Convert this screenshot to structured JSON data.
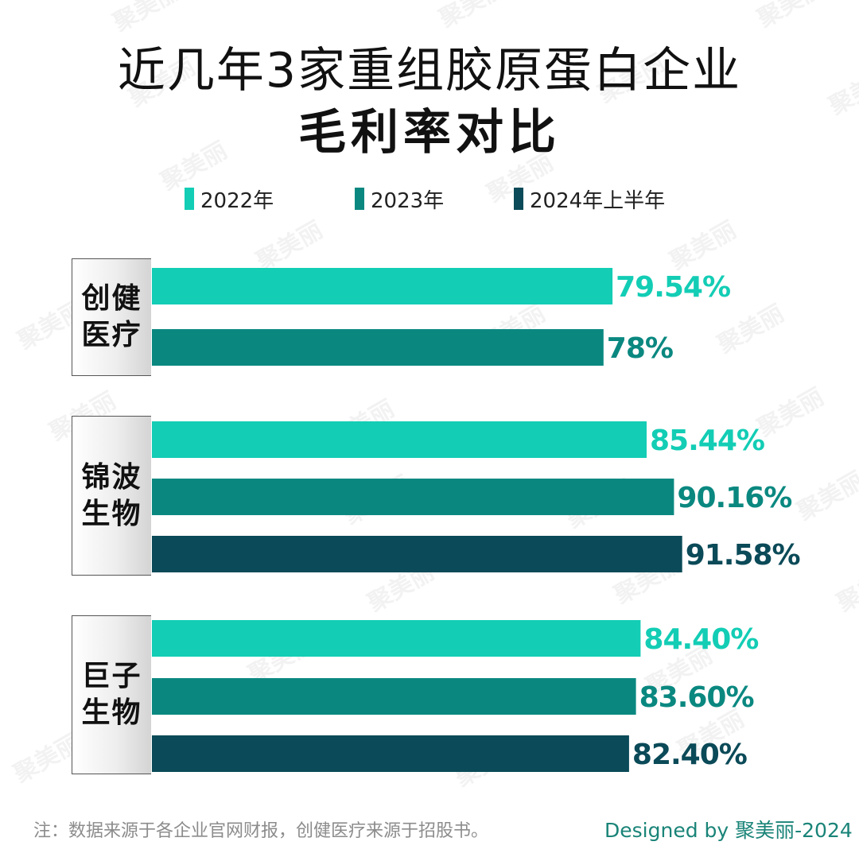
{
  "title": {
    "line1": "近几年3家重组胶原蛋白企业",
    "line2": "毛利率对比"
  },
  "watermark": "聚美丽",
  "legend": [
    {
      "label": "2022年",
      "color": "#13cdb5"
    },
    {
      "label": "2023年",
      "color": "#0a8880"
    },
    {
      "label": "2024年上半年",
      "color": "#0b4a58"
    }
  ],
  "chart_data": {
    "type": "bar",
    "orientation": "horizontal",
    "categories": [
      "创健医疗",
      "锦波生物",
      "巨子生物"
    ],
    "series": [
      {
        "name": "2022年",
        "values": [
          79.54,
          85.44,
          84.4
        ],
        "labels": [
          "79.54%",
          "85.44%",
          "84.40%"
        ],
        "color": "#13cdb5"
      },
      {
        "name": "2023年",
        "values": [
          78,
          90.16,
          83.6
        ],
        "labels": [
          "78%",
          "90.16%",
          "83.60%"
        ],
        "color": "#0a8880"
      },
      {
        "name": "2024年上半年",
        "values": [
          null,
          91.58,
          82.4
        ],
        "labels": [
          null,
          "91.58%",
          "82.40%"
        ],
        "color": "#0b4a58"
      }
    ],
    "unit": "%",
    "legend_position": "top",
    "grid": false
  },
  "footnote": "注：数据来源于各企业官网财报，创健医疗来源于招股书。",
  "credit": "Designed by 聚美丽-2024"
}
